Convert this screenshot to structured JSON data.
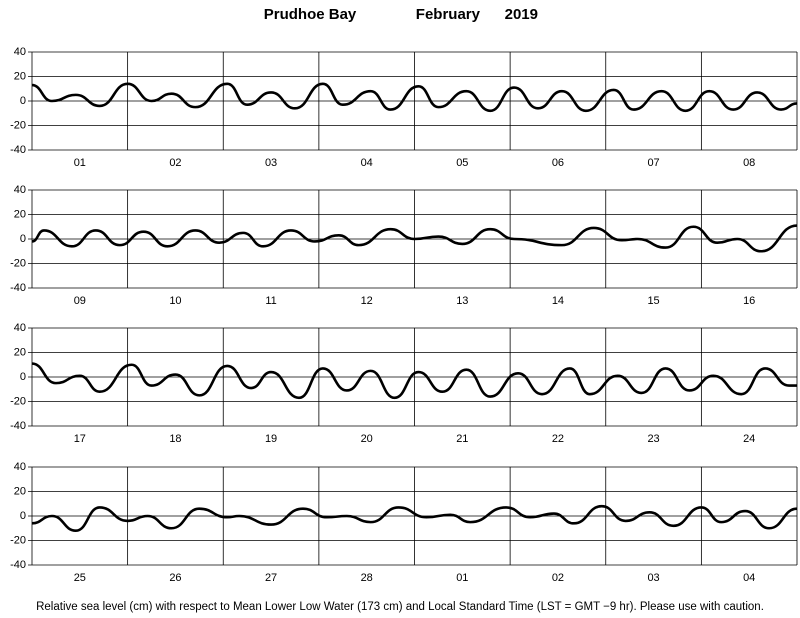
{
  "title": {
    "station": "Prudhoe Bay",
    "month": "February",
    "year": "2019"
  },
  "footer": "Relative sea level (cm) with respect to Mean Lower Low Water (173 cm) and Local Standard Time (LST = GMT −9 hr). Please use with caution.",
  "chart_data": [
    {
      "type": "line",
      "color": "#000000",
      "categories": [
        "01",
        "02",
        "03",
        "04",
        "05",
        "06",
        "07",
        "08"
      ],
      "xlim": [
        0,
        192
      ],
      "ylim": [
        -40,
        40
      ],
      "yticks": [
        -40,
        -20,
        0,
        20,
        40
      ],
      "x": [
        0,
        5,
        11,
        17,
        24,
        30,
        35,
        41,
        49,
        54,
        60,
        66,
        73,
        78,
        85,
        90,
        97,
        102,
        109,
        115,
        121,
        127,
        133,
        139,
        146,
        151,
        158,
        164,
        170,
        176,
        182,
        188,
        192
      ],
      "values": [
        13,
        0,
        5,
        -4,
        14,
        0,
        6,
        -5,
        14,
        -3,
        7,
        -6,
        14,
        -3,
        8,
        -7,
        12,
        -5,
        8,
        -8,
        11,
        -6,
        8,
        -8,
        9,
        -7,
        8,
        -8,
        8,
        -7,
        7,
        -7,
        -2
      ]
    },
    {
      "type": "line",
      "color": "#000000",
      "categories": [
        "09",
        "10",
        "11",
        "12",
        "13",
        "14",
        "15",
        "16"
      ],
      "xlim": [
        0,
        192
      ],
      "ylim": [
        -40,
        40
      ],
      "yticks": [
        -40,
        -20,
        0,
        20,
        40
      ],
      "x": [
        0,
        3,
        10,
        16,
        22,
        28,
        34,
        41,
        47,
        53,
        58,
        65,
        71,
        77,
        82,
        90,
        96,
        102,
        108,
        115,
        121,
        133,
        141,
        148,
        152,
        159,
        166,
        172,
        177,
        183,
        192
      ],
      "values": [
        -2,
        7,
        -6,
        7,
        -5,
        6,
        -6,
        7,
        -3,
        5,
        -6,
        7,
        -2,
        3,
        -5,
        8,
        0,
        2,
        -4,
        8,
        0,
        -5,
        9,
        -1,
        0,
        -7,
        10,
        -3,
        0,
        -10,
        11
      ]
    },
    {
      "type": "line",
      "color": "#000000",
      "categories": [
        "17",
        "18",
        "19",
        "20",
        "21",
        "22",
        "23",
        "24"
      ],
      "xlim": [
        0,
        192
      ],
      "ylim": [
        -40,
        40
      ],
      "yticks": [
        -40,
        -20,
        0,
        20,
        40
      ],
      "x": [
        0,
        6,
        12,
        17,
        25,
        30,
        36,
        42,
        49,
        55,
        60,
        67,
        73,
        79,
        85,
        91,
        97,
        103,
        109,
        115,
        122,
        128,
        135,
        140,
        147,
        153,
        159,
        165,
        171,
        178,
        184,
        190,
        192
      ],
      "values": [
        11,
        -5,
        1,
        -12,
        10,
        -7,
        2,
        -15,
        9,
        -9,
        4,
        -17,
        7,
        -11,
        5,
        -17,
        4,
        -12,
        6,
        -16,
        3,
        -14,
        7,
        -14,
        1,
        -13,
        7,
        -11,
        1,
        -14,
        7,
        -7,
        -7
      ]
    },
    {
      "type": "line",
      "color": "#000000",
      "categories": [
        "25",
        "26",
        "27",
        "28",
        "01",
        "02",
        "03",
        "04"
      ],
      "xlim": [
        0,
        192
      ],
      "ylim": [
        -40,
        40
      ],
      "yticks": [
        -40,
        -20,
        0,
        20,
        40
      ],
      "x": [
        0,
        5,
        11,
        17,
        24,
        29,
        35,
        42,
        49,
        52,
        60,
        68,
        74,
        79,
        85,
        92,
        99,
        105,
        110,
        119,
        125,
        131,
        136,
        143,
        149,
        155,
        161,
        168,
        173,
        179,
        185,
        192
      ],
      "values": [
        -6,
        0,
        -12,
        7,
        -4,
        0,
        -10,
        6,
        -1,
        0,
        -7,
        6,
        -1,
        0,
        -5,
        7,
        -1,
        1,
        -5,
        7,
        -1,
        2,
        -6,
        8,
        -4,
        3,
        -8,
        7,
        -5,
        4,
        -10,
        6
      ]
    }
  ]
}
